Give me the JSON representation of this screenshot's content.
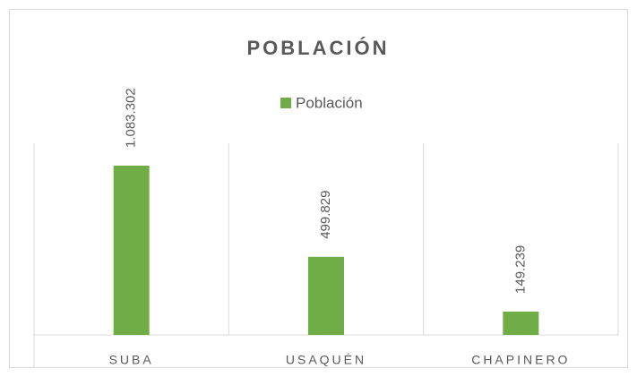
{
  "chart_data": {
    "type": "bar",
    "title": "POBLACIÓN",
    "categories": [
      "SUBA",
      "USAQUÉN",
      "CHAPINERO"
    ],
    "series": [
      {
        "name": "Población",
        "color": "#70ad47",
        "values": [
          1083302,
          499829,
          149239
        ],
        "value_labels": [
          "1.083.302",
          "499.829",
          "149.239"
        ]
      }
    ]
  }
}
